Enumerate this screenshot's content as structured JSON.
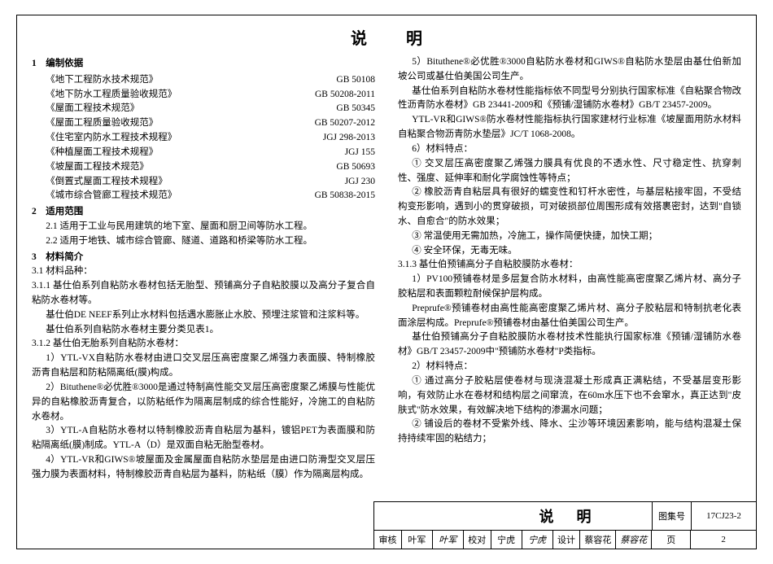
{
  "title": "说明",
  "left": {
    "sec1_heading": "1　编制依据",
    "standards": [
      {
        "name": "《地下工程防水技术规范》",
        "code": "GB 50108"
      },
      {
        "name": "《地下防水工程质量验收规范》",
        "code": "GB 50208-2011"
      },
      {
        "name": "《屋面工程技术规范》",
        "code": "GB 50345"
      },
      {
        "name": "《屋面工程质量验收规范》",
        "code": "GB 50207-2012"
      },
      {
        "name": "《住宅室内防水工程技术规程》",
        "code": "JGJ 298-2013"
      },
      {
        "name": "《种植屋面工程技术规程》",
        "code": "JGJ 155"
      },
      {
        "name": "《坡屋面工程技术规范》",
        "code": "GB 50693"
      },
      {
        "name": "《倒置式屋面工程技术规程》",
        "code": "JGJ 230"
      },
      {
        "name": "《城市综合管廊工程技术规范》",
        "code": "GB 50838-2015"
      }
    ],
    "sec2_heading": "2　适用范围",
    "sec2_1": "2.1 适用于工业与民用建筑的地下室、屋面和厨卫间等防水工程。",
    "sec2_2": "2.2 适用于地铁、城市综合管廊、隧道、道路和桥梁等防水工程。",
    "sec3_heading": "3　材料简介",
    "sec3_1": "3.1 材料品种：",
    "sec3_1_1": "3.1.1 基仕伯系列自粘防水卷材包括无胎型、预铺高分子自粘胶膜以及高分子复合自粘防水卷材等。",
    "sec3_p1": "基仕伯DE NEEF系列止水材料包括遇水膨胀止水胶、预埋注浆管和注浆料等。",
    "sec3_p2": "基仕伯系列自粘防水卷材主要分类见表1。",
    "sec3_1_2": "3.1.2 基仕伯无胎系列自粘防水卷材：",
    "sec3_1_2_1": "1）YTL-VX自粘防水卷材由进口交叉层压高密度聚乙烯强力表面膜、特制橡胶沥青自粘层和防粘隔离纸(膜)构成。",
    "sec3_1_2_2": "2）Bituthene®必优胜®3000是通过特制高性能交叉层压高密度聚乙烯膜与性能优异的自粘橡胶沥青复合，以防粘纸作为隔离层制成的综合性能好，冷施工的自粘防水卷材。",
    "sec3_1_2_3": "3）YTL-A自粘防水卷材以特制橡胶沥青自粘层为基料，镀铝PET为表面膜和防粘隔离纸(膜)制成。YTL-A（D）是双面自粘无胎型卷材。",
    "sec3_1_2_4": "4）YTL-VR和GIWS®坡屋面及金属屋面自粘防水垫层是由进口防滑型交叉层压强力膜为表面材料，特制橡胶沥青自粘层为基料，防粘纸（膜）作为隔离层构成。"
  },
  "right": {
    "p1": "5）Bituthene®必优胜®3000自粘防水卷材和GIWS®自粘防水垫层由基仕伯新加坡公司或基仕伯美国公司生产。",
    "p2": "基仕伯系列自粘防水卷材性能指标依不同型号分别执行国家标准《自粘聚合物改性沥青防水卷材》GB 23441-2009和《预铺/湿铺防水卷材》GB/T 23457-2009。",
    "p3": "YTL-VR和GIWS®防水卷材性能指标执行国家建材行业标准《坡屋面用防水材料 自粘聚合物沥青防水垫层》JC/T 1068-2008。",
    "p4": "6）材料特点：",
    "p5": "① 交叉层压高密度聚乙烯强力膜具有优良的不透水性、尺寸稳定性、抗穿刺性、强度、延伸率和耐化学腐蚀性等特点；",
    "p6": "② 橡胶沥青自粘层具有很好的蠕变性和钉杆水密性，与基层粘接牢固，不受结构变形影响，遇到小的贯穿破损，可对破损部位周围形成有效搭裹密封，达到\"自锁水、自愈合\"的防水效果；",
    "p7": "③ 常温使用无需加热，冷施工，操作简便快捷，加快工期；",
    "p8": "④ 安全环保，无毒无味。",
    "p9": "3.1.3 基仕伯预铺高分子自粘胶膜防水卷材：",
    "p10": "1）PV100预铺卷材是多层复合防水材料，由高性能高密度聚乙烯片材、高分子胶粘层和表面颗粒耐候保护层构成。",
    "p11": "Preprufe®预铺卷材由高性能高密度聚乙烯片材、高分子胶粘层和特制抗老化表面涂层构成。Preprufe®预铺卷材由基仕伯美国公司生产。",
    "p12": "基仕伯预铺高分子自粘胶膜防水卷材技术性能执行国家标准《预铺/湿铺防水卷材》GB/T 23457-2009中\"预铺防水卷材\"P类指标。",
    "p13": "2）材料特点：",
    "p14": "① 通过高分子胶粘层使卷材与现浇混凝土形成真正满粘结，不受基层变形影响，有效防止水在卷材和结构层之间窜流，在60m水压下也不会窜水，真正达到\"皮肤式\"防水效果，有效解决地下结构的渗漏水问题；",
    "p15": "② 铺设后的卷材不受紫外线、降水、尘沙等环境因素影响，能与结构混凝土保持持续牢固的粘结力；"
  },
  "footer": {
    "title": "说明",
    "tuji_label": "图集号",
    "tuji_value": "17CJ23-2",
    "shenhe_label": "审核",
    "shenhe_name": "叶军",
    "shenhe_sig": "叶军",
    "jiaodui_label": "校对",
    "jiaodui_name": "宁虎",
    "jiaodui_sig": "宁虎",
    "sheji_label": "设计",
    "sheji_name": "蔡容花",
    "sheji_sig": "蔡容花",
    "ye_label": "页",
    "ye_value": "2"
  }
}
